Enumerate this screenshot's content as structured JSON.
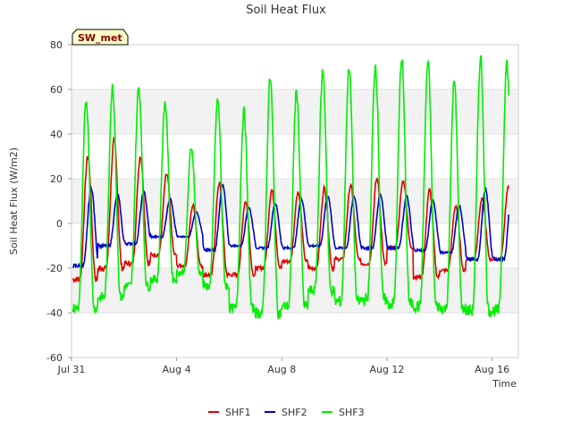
{
  "chart_data": {
    "type": "line",
    "title": "Soil Heat Flux",
    "xlabel": "Time",
    "ylabel": "Soil Heat Flux (W/m2)",
    "ylim": [
      -60,
      80
    ],
    "y_ticks": [
      -60,
      -40,
      -20,
      0,
      20,
      40,
      60,
      80
    ],
    "x_range_days": [
      "2023-07-31",
      "2023-08-17"
    ],
    "x_ticks": [
      {
        "date": "2023-07-31",
        "label": "Jul 31"
      },
      {
        "date": "2023-08-04",
        "label": "Aug 4"
      },
      {
        "date": "2023-08-08",
        "label": "Aug 8"
      },
      {
        "date": "2023-08-12",
        "label": "Aug 12"
      },
      {
        "date": "2023-08-16",
        "label": "Aug 16"
      }
    ],
    "grid": true,
    "legend_position": "bottom",
    "station_label": "SW_met",
    "series": [
      {
        "name": "SHF1",
        "color": "#e00000",
        "daily_min": [
          -25,
          -20,
          -18,
          -14,
          -19,
          -23,
          -23,
          -20,
          -17,
          -20,
          -16,
          -18,
          -11,
          -24,
          -21,
          -16
        ],
        "daily_max": [
          30,
          37,
          30,
          22,
          8,
          18,
          10,
          15,
          14,
          16,
          17,
          20,
          19,
          15,
          8,
          11,
          16
        ]
      },
      {
        "name": "SHF2",
        "color": "#0000cc",
        "daily_min": [
          -19,
          -10,
          -9,
          -6,
          -6,
          -12,
          -10,
          -11,
          -11,
          -10,
          -11,
          -11,
          -11,
          -12,
          -13,
          -16
        ],
        "daily_max": [
          16,
          13,
          14,
          11,
          5,
          17,
          7,
          9,
          11,
          12,
          12,
          13,
          12,
          10,
          8,
          15,
          13
        ]
      },
      {
        "name": "SHF3",
        "color": "#00ee00",
        "daily_min": [
          -38,
          -33,
          -28,
          -25,
          -22,
          -28,
          -38,
          -40,
          -37,
          -30,
          -35,
          -34,
          -36,
          -37,
          -38,
          -39
        ],
        "daily_max": [
          55,
          61,
          61,
          54,
          34,
          55,
          50,
          65,
          59,
          68,
          70,
          71,
          74,
          72,
          63,
          74,
          72
        ]
      }
    ]
  }
}
